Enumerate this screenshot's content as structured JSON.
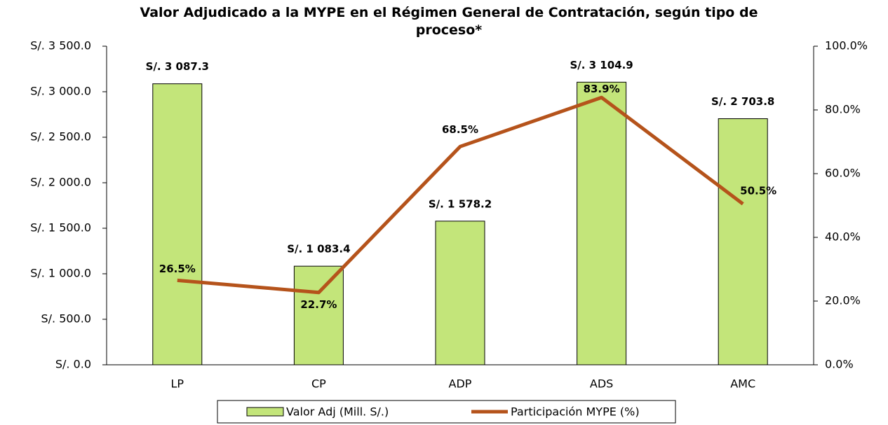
{
  "chart_data": {
    "type": "bar",
    "title": "Valor Adjudicado a la MYPE en el Régimen General de Contratación, según tipo de proceso*",
    "categories": [
      "LP",
      "CP",
      "ADP",
      "ADS",
      "AMC"
    ],
    "series": [
      {
        "name": "Valor Adj (Mill. S/.)",
        "type": "bar",
        "color": "#c3e57a",
        "edge": "#000000",
        "values": [
          3087.3,
          1083.4,
          1578.2,
          3104.9,
          2703.8
        ],
        "value_labels": [
          "S/. 3 087.3",
          "S/. 1 083.4",
          "S/. 1 578.2",
          "S/. 3 104.9",
          "S/. 2 703.8"
        ]
      },
      {
        "name": "Participación  MYPE (%)",
        "type": "line",
        "axis": "y2",
        "color": "#b5531b",
        "values": [
          26.5,
          22.7,
          68.5,
          83.9,
          50.5
        ],
        "value_labels": [
          "26.5%",
          "22.7%",
          "68.5%",
          "83.9%",
          "50.5%"
        ]
      }
    ],
    "ylim": [
      0,
      3500
    ],
    "yticks": [
      {
        "value": 0,
        "label": "S/. 0.0"
      },
      {
        "value": 500,
        "label": "S/. 500.0"
      },
      {
        "value": 1000,
        "label": "S/. 1 000.0"
      },
      {
        "value": 1500,
        "label": "S/. 1 500.0"
      },
      {
        "value": 2000,
        "label": "S/. 2 000.0"
      },
      {
        "value": 2500,
        "label": "S/. 2 500.0"
      },
      {
        "value": 3000,
        "label": "S/. 3 000.0"
      },
      {
        "value": 3500,
        "label": "S/. 3 500.0"
      }
    ],
    "y2lim": [
      0,
      100
    ],
    "y2ticks": [
      {
        "value": 0,
        "label": "0.0%"
      },
      {
        "value": 20,
        "label": "20.0%"
      },
      {
        "value": 40,
        "label": "40.0%"
      },
      {
        "value": 60,
        "label": "60.0%"
      },
      {
        "value": 80,
        "label": "80.0%"
      },
      {
        "value": 100,
        "label": "100.0%"
      }
    ],
    "grid": false,
    "legend": "bottom"
  }
}
